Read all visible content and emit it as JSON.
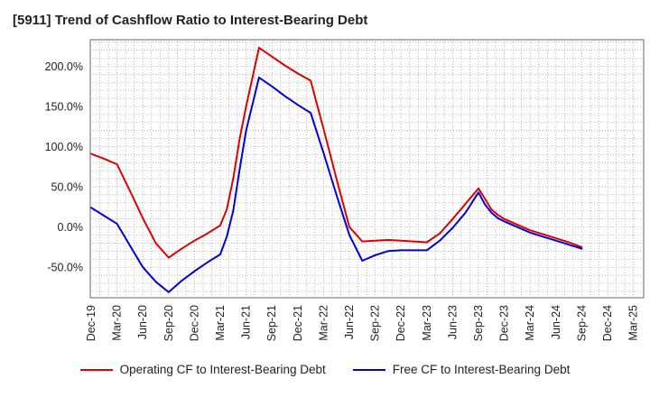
{
  "chart_data": {
    "type": "line",
    "title": "[5911]  Trend of Cashflow Ratio to Interest-Bearing Debt",
    "xlabel": "",
    "ylabel": "",
    "categories": [
      "Dec-19",
      "Mar-20",
      "Jun-20",
      "Sep-20",
      "Dec-20",
      "Mar-21",
      "Jun-21",
      "Sep-21",
      "Dec-21",
      "Mar-22",
      "Jun-22",
      "Sep-22",
      "Dec-22",
      "Mar-23",
      "Jun-23",
      "Sep-23",
      "Dec-23",
      "Mar-24",
      "Jun-24",
      "Sep-24",
      "Dec-24",
      "Mar-25"
    ],
    "y_ticks": [
      "200.0%",
      "150.0%",
      "100.0%",
      "50.0%",
      "0.0%",
      "-50.0%"
    ],
    "ylim": [
      -88,
      233
    ],
    "grid": true,
    "legend_position": "bottom",
    "series": [
      {
        "name": "Operating CF to Interest-Bearing Debt",
        "color": "#e00000",
        "x": [
          0,
          0.5,
          1,
          1.5,
          2,
          2.5,
          3,
          3.5,
          4,
          4.5,
          5,
          5.25,
          5.5,
          5.75,
          6,
          6.5,
          7,
          7.5,
          8,
          8.5,
          9,
          9.5,
          10,
          10.5,
          11,
          11.5,
          12,
          12.5,
          13,
          13.5,
          14,
          14.5,
          15,
          15.25,
          15.5,
          15.75,
          16,
          16.5,
          17,
          17.5,
          18,
          18.5,
          19
        ],
        "values": [
          91,
          85,
          78,
          45,
          11,
          -20,
          -38,
          -27,
          -17,
          -8,
          2,
          22,
          60,
          110,
          150,
          223,
          212,
          201,
          191,
          182,
          122,
          60,
          0,
          -18,
          -17,
          -16,
          -17,
          -18,
          -19,
          -8,
          10,
          29,
          48,
          35,
          22,
          15,
          10,
          3,
          -4,
          -9,
          -14,
          -19,
          -25
        ]
      },
      {
        "name": "Free CF to Interest-Bearing Debt",
        "color": "#0000e0",
        "x": [
          0,
          0.5,
          1,
          1.5,
          2,
          2.5,
          3,
          3.5,
          4,
          4.5,
          5,
          5.25,
          5.5,
          5.75,
          6,
          6.5,
          7,
          7.5,
          8,
          8.5,
          9,
          9.5,
          10,
          10.5,
          11,
          11.5,
          12,
          12.5,
          13,
          13.5,
          14,
          14.5,
          15,
          15.25,
          15.5,
          15.75,
          16,
          16.5,
          17,
          17.5,
          18,
          18.5,
          19
        ],
        "values": [
          24,
          14,
          4,
          -23,
          -50,
          -68,
          -81,
          -67,
          -55,
          -44,
          -34,
          -12,
          20,
          72,
          120,
          186,
          175,
          163,
          152,
          142,
          92,
          40,
          -10,
          -42,
          -35,
          -30,
          -29,
          -29,
          -29,
          -17,
          -1,
          18,
          43,
          28,
          18,
          11,
          7,
          0,
          -7,
          -12,
          -17,
          -22,
          -27
        ]
      }
    ]
  }
}
